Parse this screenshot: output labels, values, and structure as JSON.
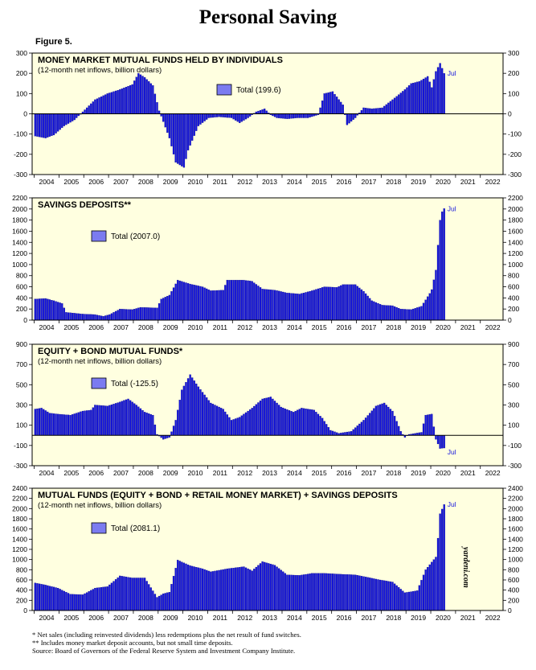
{
  "page": {
    "title": "Personal Saving",
    "figure_label": "Figure 5.",
    "watermark": "yardeni.com",
    "footnotes": [
      "* Net sales (including reinvested dividends) less redemptions plus the net result of fund switches.",
      "** Includes money market deposit accounts, but not small time deposits.",
      "Source: Board of Governors of the Federal Reserve System and Investment Company Institute."
    ]
  },
  "colors": {
    "panel_background": "#ffffe0",
    "bar_fill": "#1515dd",
    "bar_edge": "#00007a",
    "legend_swatch": "#7b7bf0",
    "last_label": "#1515dd"
  },
  "chart_data": [
    {
      "type": "bar",
      "title": "MONEY MARKET MUTUAL FUNDS HELD BY INDIVIDUALS",
      "subtitle": "(12-month net inflows, billion dollars)",
      "legend": "Total (199.6)",
      "last_label": "Jul",
      "ylim": [
        -300,
        300
      ],
      "yticks": [
        -300,
        -200,
        -100,
        0,
        100,
        200,
        300
      ],
      "xticks": [
        "2004",
        "2005",
        "2006",
        "2007",
        "2008",
        "2009",
        "2010",
        "2011",
        "2012",
        "2013",
        "2014",
        "2015",
        "2016",
        "2017",
        "2018",
        "2019",
        "2020",
        "2021",
        "2022"
      ],
      "x_start": "2003-12",
      "x_end": "2022-12",
      "start": "2004-01",
      "anchors": [
        [
          "2004-01",
          -110
        ],
        [
          "2004-06",
          -120
        ],
        [
          "2004-10",
          -105
        ],
        [
          "2005-03",
          -60
        ],
        [
          "2005-08",
          -30
        ],
        [
          "2005-12",
          10
        ],
        [
          "2006-06",
          70
        ],
        [
          "2006-12",
          100
        ],
        [
          "2007-06",
          120
        ],
        [
          "2007-12",
          145
        ],
        [
          "2008-03",
          200
        ],
        [
          "2008-06",
          180
        ],
        [
          "2008-10",
          140
        ],
        [
          "2009-01",
          15
        ],
        [
          "2009-06",
          -120
        ],
        [
          "2009-09",
          -240
        ],
        [
          "2010-01",
          -265
        ],
        [
          "2010-03",
          -180
        ],
        [
          "2010-08",
          -60
        ],
        [
          "2011-01",
          -20
        ],
        [
          "2011-06",
          -15
        ],
        [
          "2011-12",
          -20
        ],
        [
          "2012-04",
          -45
        ],
        [
          "2012-08",
          -20
        ],
        [
          "2012-12",
          10
        ],
        [
          "2013-04",
          25
        ],
        [
          "2013-07",
          -5
        ],
        [
          "2013-10",
          -20
        ],
        [
          "2014-03",
          -25
        ],
        [
          "2014-08",
          -20
        ],
        [
          "2015-01",
          -20
        ],
        [
          "2015-06",
          -5
        ],
        [
          "2015-09",
          100
        ],
        [
          "2016-01",
          110
        ],
        [
          "2016-06",
          45
        ],
        [
          "2016-08",
          -55
        ],
        [
          "2016-12",
          -20
        ],
        [
          "2017-04",
          30
        ],
        [
          "2017-08",
          25
        ],
        [
          "2018-01",
          30
        ],
        [
          "2018-06",
          70
        ],
        [
          "2018-12",
          120
        ],
        [
          "2019-03",
          150
        ],
        [
          "2019-07",
          160
        ],
        [
          "2019-11",
          185
        ],
        [
          "2020-01",
          130
        ],
        [
          "2020-03",
          210
        ],
        [
          "2020-05",
          250
        ],
        [
          "2020-07",
          200
        ]
      ]
    },
    {
      "type": "bar",
      "title": "SAVINGS DEPOSITS**",
      "subtitle": "",
      "legend": "Total (2007.0)",
      "last_label": "Jul",
      "ylim": [
        0,
        2200
      ],
      "yticks": [
        0,
        200,
        400,
        600,
        800,
        1000,
        1200,
        1400,
        1600,
        1800,
        2000,
        2200
      ],
      "xticks": [
        "2004",
        "2005",
        "2006",
        "2007",
        "2008",
        "2009",
        "2010",
        "2011",
        "2012",
        "2013",
        "2014",
        "2015",
        "2016",
        "2017",
        "2018",
        "2019",
        "2020",
        "2021",
        "2022"
      ],
      "x_start": "2003-12",
      "x_end": "2022-12",
      "start": "2004-01",
      "anchors": [
        [
          "2004-01",
          380
        ],
        [
          "2004-06",
          390
        ],
        [
          "2004-10",
          350
        ],
        [
          "2005-02",
          300
        ],
        [
          "2005-04",
          140
        ],
        [
          "2005-12",
          110
        ],
        [
          "2006-06",
          100
        ],
        [
          "2006-10",
          70
        ],
        [
          "2007-01",
          100
        ],
        [
          "2007-06",
          200
        ],
        [
          "2007-12",
          190
        ],
        [
          "2008-04",
          230
        ],
        [
          "2008-12",
          220
        ],
        [
          "2009-02",
          380
        ],
        [
          "2009-06",
          450
        ],
        [
          "2009-10",
          720
        ],
        [
          "2010-04",
          650
        ],
        [
          "2010-10",
          600
        ],
        [
          "2011-02",
          530
        ],
        [
          "2011-08",
          540
        ],
        [
          "2011-10",
          720
        ],
        [
          "2012-06",
          720
        ],
        [
          "2012-10",
          700
        ],
        [
          "2013-03",
          560
        ],
        [
          "2013-09",
          540
        ],
        [
          "2014-03",
          490
        ],
        [
          "2014-09",
          470
        ],
        [
          "2015-03",
          530
        ],
        [
          "2015-09",
          600
        ],
        [
          "2016-03",
          590
        ],
        [
          "2016-06",
          640
        ],
        [
          "2016-12",
          640
        ],
        [
          "2017-04",
          520
        ],
        [
          "2017-08",
          350
        ],
        [
          "2018-01",
          270
        ],
        [
          "2018-06",
          260
        ],
        [
          "2018-10",
          200
        ],
        [
          "2019-03",
          190
        ],
        [
          "2019-08",
          250
        ],
        [
          "2019-12",
          480
        ],
        [
          "2020-01",
          550
        ],
        [
          "2020-03",
          900
        ],
        [
          "2020-04",
          1350
        ],
        [
          "2020-05",
          1800
        ],
        [
          "2020-06",
          1950
        ],
        [
          "2020-07",
          2007
        ]
      ]
    },
    {
      "type": "bar",
      "title": "EQUITY + BOND MUTUAL FUNDS*",
      "subtitle": "(12-month net inflows, billion dollars)",
      "legend": "Total (-125.5)",
      "last_label": "Jul",
      "ylim": [
        -300,
        900
      ],
      "yticks": [
        -300,
        -100,
        100,
        300,
        500,
        700,
        900
      ],
      "xticks": [
        "2004",
        "2005",
        "2006",
        "2007",
        "2008",
        "2009",
        "2010",
        "2011",
        "2012",
        "2013",
        "2014",
        "2015",
        "2016",
        "2017",
        "2018",
        "2019",
        "2020",
        "2021",
        "2022"
      ],
      "x_start": "2003-12",
      "x_end": "2022-12",
      "start": "2004-01",
      "anchors": [
        [
          "2004-01",
          260
        ],
        [
          "2004-04",
          270
        ],
        [
          "2004-08",
          220
        ],
        [
          "2004-12",
          210
        ],
        [
          "2005-06",
          200
        ],
        [
          "2005-12",
          240
        ],
        [
          "2006-04",
          250
        ],
        [
          "2006-06",
          300
        ],
        [
          "2006-12",
          290
        ],
        [
          "2007-06",
          330
        ],
        [
          "2007-10",
          360
        ],
        [
          "2008-02",
          300
        ],
        [
          "2008-06",
          230
        ],
        [
          "2008-10",
          200
        ],
        [
          "2008-12",
          10
        ],
        [
          "2009-03",
          -40
        ],
        [
          "2009-06",
          -20
        ],
        [
          "2009-09",
          150
        ],
        [
          "2009-12",
          450
        ],
        [
          "2010-04",
          600
        ],
        [
          "2010-08",
          480
        ],
        [
          "2011-02",
          320
        ],
        [
          "2011-08",
          260
        ],
        [
          "2011-12",
          150
        ],
        [
          "2012-04",
          180
        ],
        [
          "2012-10",
          270
        ],
        [
          "2013-03",
          360
        ],
        [
          "2013-07",
          380
        ],
        [
          "2013-12",
          280
        ],
        [
          "2014-06",
          230
        ],
        [
          "2014-10",
          270
        ],
        [
          "2015-04",
          250
        ],
        [
          "2015-08",
          170
        ],
        [
          "2015-12",
          50
        ],
        [
          "2016-04",
          20
        ],
        [
          "2016-10",
          40
        ],
        [
          "2017-04",
          150
        ],
        [
          "2017-10",
          290
        ],
        [
          "2018-02",
          320
        ],
        [
          "2018-06",
          240
        ],
        [
          "2018-10",
          40
        ],
        [
          "2018-12",
          -20
        ],
        [
          "2019-02",
          10
        ],
        [
          "2019-08",
          30
        ],
        [
          "2019-10",
          200
        ],
        [
          "2020-01",
          210
        ],
        [
          "2020-03",
          -40
        ],
        [
          "2020-05",
          -130
        ],
        [
          "2020-07",
          -125.5
        ]
      ]
    },
    {
      "type": "bar",
      "title": "MUTUAL FUNDS (EQUITY + BOND + RETAIL MONEY MARKET) + SAVINGS DEPOSITS",
      "subtitle": "(12-month net inflows, billion dollars)",
      "legend": "Total (2081.1)",
      "last_label": "Jul",
      "ylim": [
        0,
        2400
      ],
      "yticks": [
        0,
        200,
        400,
        600,
        800,
        1000,
        1200,
        1400,
        1600,
        1800,
        2000,
        2200,
        2400
      ],
      "xticks": [
        "2004",
        "2005",
        "2006",
        "2007",
        "2008",
        "2009",
        "2010",
        "2011",
        "2012",
        "2013",
        "2014",
        "2015",
        "2016",
        "2017",
        "2018",
        "2019",
        "2020",
        "2021",
        "2022"
      ],
      "x_start": "2003-12",
      "x_end": "2022-12",
      "start": "2004-01",
      "anchors": [
        [
          "2004-01",
          540
        ],
        [
          "2004-06",
          500
        ],
        [
          "2004-12",
          440
        ],
        [
          "2005-06",
          320
        ],
        [
          "2005-12",
          310
        ],
        [
          "2006-06",
          440
        ],
        [
          "2006-12",
          470
        ],
        [
          "2007-06",
          680
        ],
        [
          "2007-12",
          640
        ],
        [
          "2008-06",
          640
        ],
        [
          "2008-12",
          260
        ],
        [
          "2009-03",
          330
        ],
        [
          "2009-06",
          360
        ],
        [
          "2009-10",
          990
        ],
        [
          "2010-04",
          880
        ],
        [
          "2010-10",
          820
        ],
        [
          "2011-02",
          760
        ],
        [
          "2011-10",
          820
        ],
        [
          "2012-06",
          860
        ],
        [
          "2012-10",
          780
        ],
        [
          "2013-03",
          960
        ],
        [
          "2013-09",
          890
        ],
        [
          "2014-03",
          700
        ],
        [
          "2014-09",
          690
        ],
        [
          "2015-03",
          730
        ],
        [
          "2015-09",
          730
        ],
        [
          "2016-06",
          710
        ],
        [
          "2016-12",
          700
        ],
        [
          "2017-06",
          650
        ],
        [
          "2017-12",
          600
        ],
        [
          "2018-06",
          560
        ],
        [
          "2018-12",
          350
        ],
        [
          "2019-06",
          390
        ],
        [
          "2019-10",
          800
        ],
        [
          "2020-01",
          950
        ],
        [
          "2020-03",
          1050
        ],
        [
          "2020-04",
          1420
        ],
        [
          "2020-05",
          1900
        ],
        [
          "2020-07",
          2081.1
        ]
      ]
    }
  ]
}
